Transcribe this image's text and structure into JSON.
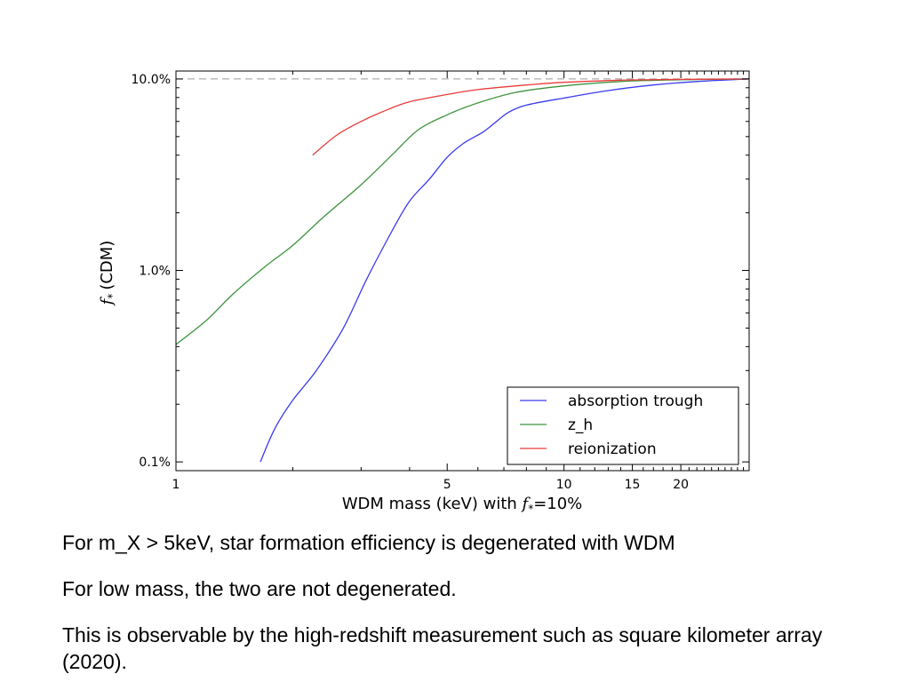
{
  "chart_data": {
    "type": "line",
    "xlabel": "WDM mass (keV) with",
    "xlabel_symbol": "f",
    "xlabel_subscript": "*",
    "xlabel_suffix": "=10%",
    "ylabel": "(CDM)",
    "ylabel_symbol": "f",
    "ylabel_subscript": "*",
    "x_scale": "log",
    "y_scale": "log",
    "xlim": [
      1,
      30
    ],
    "ylim": [
      0.09,
      11
    ],
    "x_ticks": [
      {
        "value": 1,
        "label": "1"
      },
      {
        "value": 5,
        "label": "5"
      },
      {
        "value": 10,
        "label": "10"
      },
      {
        "value": 15,
        "label": "15"
      },
      {
        "value": 20,
        "label": "20"
      }
    ],
    "y_ticks": [
      {
        "value": 0.1,
        "label": "0.1%"
      },
      {
        "value": 1,
        "label": "1.0%"
      },
      {
        "value": 10,
        "label": "10.0%"
      }
    ],
    "reference_line": {
      "y": 10,
      "style": "dashed",
      "color": "#999999"
    },
    "legend_position": "lower-right",
    "series": [
      {
        "name": "absorption trough",
        "color": "#3a3aef",
        "x": [
          1.65,
          1.8,
          2.0,
          2.3,
          2.7,
          3.1,
          3.6,
          4.0,
          4.5,
          5.0,
          5.5,
          6.2,
          6.7,
          7.2,
          8.0,
          10.0,
          13.0,
          17.0,
          22.0,
          30.0
        ],
        "y": [
          0.1,
          0.15,
          0.21,
          0.3,
          0.5,
          0.9,
          1.6,
          2.3,
          3.0,
          3.9,
          4.6,
          5.3,
          6.0,
          6.7,
          7.3,
          7.95,
          8.7,
          9.3,
          9.7,
          10.0
        ]
      },
      {
        "name": "z_h",
        "color": "#3d943d",
        "x": [
          1.0,
          1.2,
          1.4,
          1.7,
          2.0,
          2.4,
          3.0,
          3.6,
          4.2,
          5.0,
          6.0,
          7.5,
          10.0,
          14.0,
          20.0,
          30.0
        ],
        "y": [
          0.41,
          0.55,
          0.75,
          1.05,
          1.35,
          1.9,
          2.8,
          4.0,
          5.4,
          6.5,
          7.5,
          8.5,
          9.2,
          9.7,
          9.9,
          10.0
        ]
      },
      {
        "name": "reionization",
        "color": "#e83a3a",
        "x": [
          2.25,
          2.6,
          3.0,
          3.5,
          4.0,
          5.0,
          6.0,
          8.0,
          10.0,
          14.0,
          20.0,
          30.0
        ],
        "y": [
          4.0,
          5.1,
          6.0,
          6.9,
          7.6,
          8.3,
          8.8,
          9.3,
          9.6,
          9.85,
          9.95,
          10.0
        ]
      }
    ]
  },
  "captions": [
    "For m_X > 5keV, star formation efficiency is degenerated with WDM",
    "For low mass, the two are not degenerated.",
    "This is observable by the high-redshift measurement such as square kilometer array (2020)."
  ]
}
